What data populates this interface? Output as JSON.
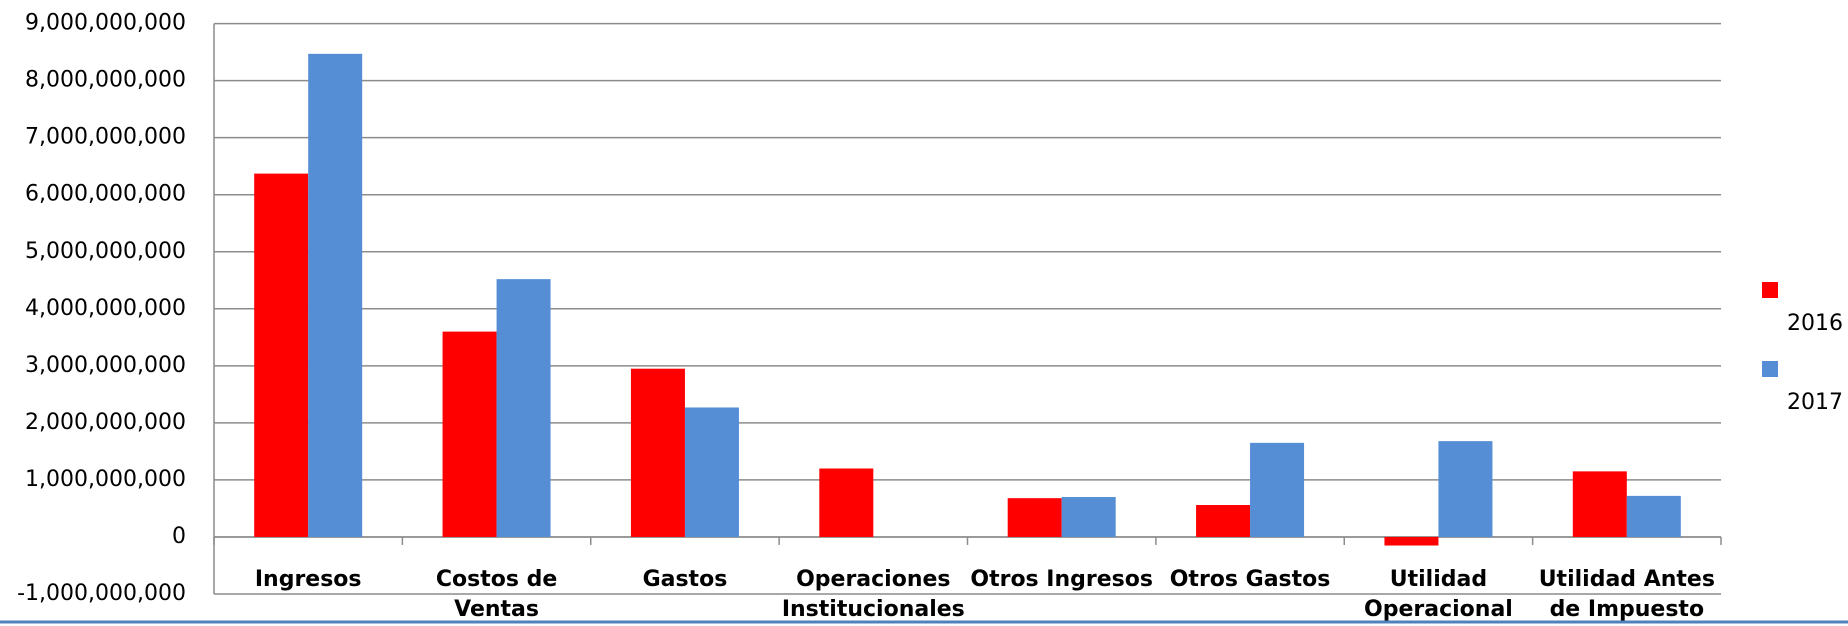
{
  "chart_data": {
    "type": "bar",
    "categories": [
      "Ingresos",
      "Costos de Ventas",
      "Gastos",
      "Operaciones Institucionales",
      "Otros Ingresos",
      "Otros Gastos",
      "Utilidad Operacional",
      "Utilidad  Antes de  Impuesto"
    ],
    "series": [
      {
        "name": "2016",
        "color": "#ff0000",
        "values": [
          6370000000,
          3600000000,
          2950000000,
          1200000000,
          680000000,
          560000000,
          -150000000,
          1150000000
        ]
      },
      {
        "name": "2017",
        "color": "#558ed5",
        "values": [
          8470000000,
          4520000000,
          2270000000,
          0,
          700000000,
          1650000000,
          1680000000,
          720000000
        ]
      }
    ],
    "ylim": [
      -1000000000,
      9000000000
    ],
    "yticks": [
      {
        "value": -1000000000,
        "label": "-1,000,000,000"
      },
      0,
      {
        "value": 1000000000,
        "label": "1,000,000,000"
      },
      {
        "value": 2000000000,
        "label": "2,000,000,000"
      },
      {
        "value": 3000000000,
        "label": "3,000,000,000"
      },
      {
        "value": 4000000000,
        "label": "4,000,000,000"
      },
      {
        "value": 5000000000,
        "label": "5,000,000,000"
      },
      {
        "value": 6000000000,
        "label": "6,000,000,000"
      },
      {
        "value": 7000000000,
        "label": "7,000,000,000"
      },
      {
        "value": 8000000000,
        "label": "8,000,000,000"
      },
      {
        "value": 9000000000,
        "label": "9,000,000,000"
      }
    ],
    "grid": true,
    "legend": "right"
  }
}
